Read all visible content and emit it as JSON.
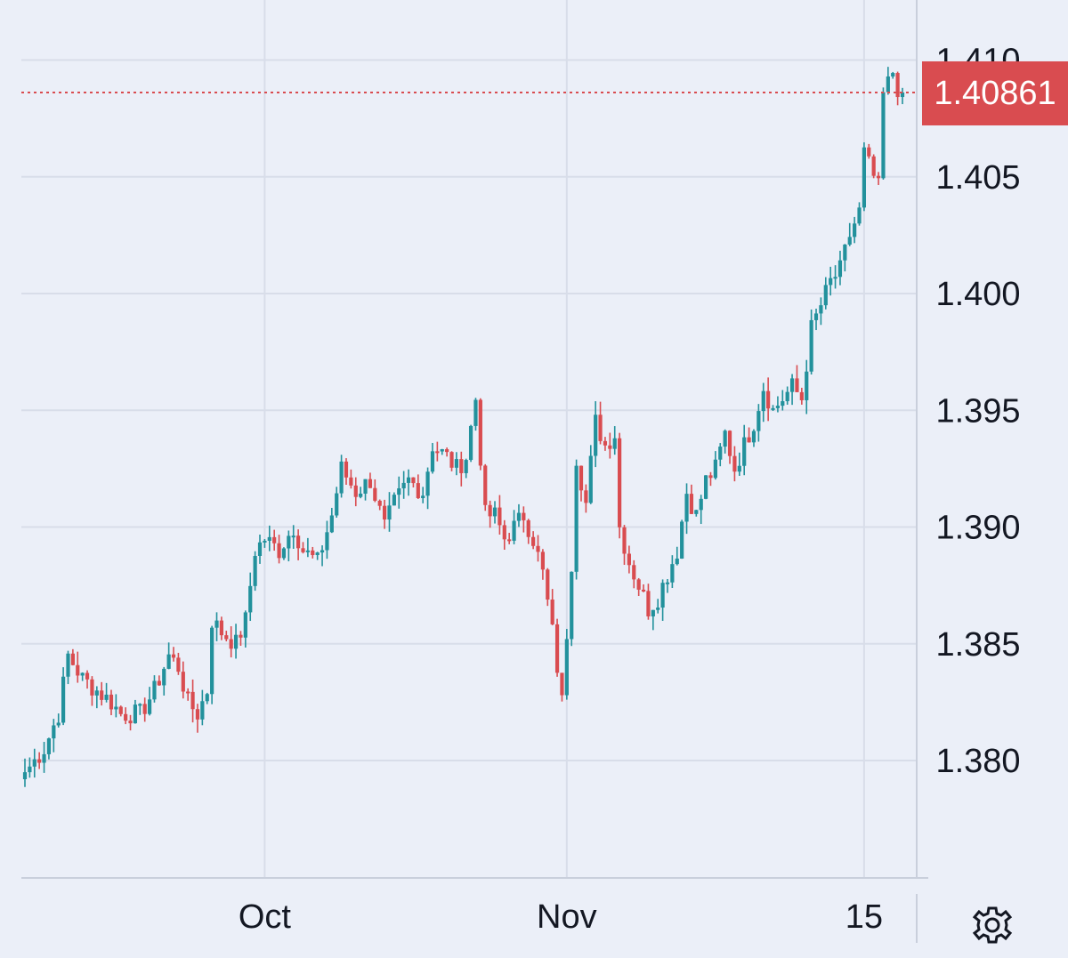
{
  "colors": {
    "background": "#ebeff8",
    "grid": "#d8dde9",
    "up": "#22919c",
    "down": "#d94c50",
    "text": "#131722",
    "price_label": "#d94c50"
  },
  "icons": {
    "settings": "gear-icon"
  },
  "chart_data": {
    "type": "candlestick",
    "y_ticks": [
      "1.380",
      "1.385",
      "1.390",
      "1.395",
      "1.400",
      "1.405",
      "1.410"
    ],
    "x_ticks": [
      {
        "label": "Oct",
        "index": 50
      },
      {
        "label": "Nov",
        "index": 113
      },
      {
        "label": "15",
        "index": 175
      }
    ],
    "ylim": [
      1.3755,
      1.4115
    ],
    "grid": true,
    "current_price": {
      "value": 1.40861,
      "label": "1.40861"
    },
    "anchors": [
      [
        0,
        1.3795
      ],
      [
        4,
        1.3805
      ],
      [
        7,
        1.382
      ],
      [
        9,
        1.3845
      ],
      [
        12,
        1.3835
      ],
      [
        15,
        1.383
      ],
      [
        18,
        1.3825
      ],
      [
        20,
        1.382
      ],
      [
        24,
        1.382
      ],
      [
        27,
        1.383
      ],
      [
        30,
        1.3845
      ],
      [
        32,
        1.384
      ],
      [
        34,
        1.3825
      ],
      [
        36,
        1.382
      ],
      [
        38,
        1.383
      ],
      [
        39,
        1.386
      ],
      [
        41,
        1.3855
      ],
      [
        44,
        1.385
      ],
      [
        46,
        1.386
      ],
      [
        48,
        1.389
      ],
      [
        50,
        1.3895
      ],
      [
        53,
        1.389
      ],
      [
        56,
        1.39
      ],
      [
        58,
        1.389
      ],
      [
        61,
        1.3885
      ],
      [
        64,
        1.3905
      ],
      [
        66,
        1.3925
      ],
      [
        69,
        1.3915
      ],
      [
        72,
        1.392
      ],
      [
        75,
        1.39
      ],
      [
        77,
        1.391
      ],
      [
        80,
        1.392
      ],
      [
        83,
        1.3915
      ],
      [
        85,
        1.3935
      ],
      [
        88,
        1.393
      ],
      [
        90,
        1.3925
      ],
      [
        92,
        1.393
      ],
      [
        94,
        1.3955
      ],
      [
        96,
        1.3905
      ],
      [
        98,
        1.3905
      ],
      [
        100,
        1.3895
      ],
      [
        102,
        1.39
      ],
      [
        104,
        1.3905
      ],
      [
        106,
        1.3895
      ],
      [
        108,
        1.388
      ],
      [
        110,
        1.3855
      ],
      [
        112,
        1.3825
      ],
      [
        114,
        1.3885
      ],
      [
        115,
        1.393
      ],
      [
        117,
        1.391
      ],
      [
        119,
        1.3945
      ],
      [
        121,
        1.3935
      ],
      [
        123,
        1.394
      ],
      [
        124,
        1.39
      ],
      [
        126,
        1.3885
      ],
      [
        128,
        1.3875
      ],
      [
        130,
        1.3865
      ],
      [
        132,
        1.387
      ],
      [
        134,
        1.388
      ],
      [
        136,
        1.389
      ],
      [
        138,
        1.3915
      ],
      [
        140,
        1.3905
      ],
      [
        142,
        1.392
      ],
      [
        144,
        1.3925
      ],
      [
        146,
        1.394
      ],
      [
        148,
        1.3925
      ],
      [
        150,
        1.3935
      ],
      [
        152,
        1.3945
      ],
      [
        154,
        1.396
      ],
      [
        156,
        1.395
      ],
      [
        158,
        1.3955
      ],
      [
        160,
        1.396
      ],
      [
        162,
        1.3955
      ],
      [
        164,
        1.3985
      ],
      [
        166,
        1.3995
      ],
      [
        168,
        1.4005
      ],
      [
        170,
        1.401
      ],
      [
        172,
        1.4025
      ],
      [
        174,
        1.4035
      ],
      [
        175,
        1.406
      ],
      [
        177,
        1.405
      ],
      [
        178,
        1.4045
      ],
      [
        179,
        1.4085
      ],
      [
        181,
        1.4095
      ],
      [
        182,
        1.4088
      ],
      [
        183,
        1.40861
      ]
    ]
  }
}
